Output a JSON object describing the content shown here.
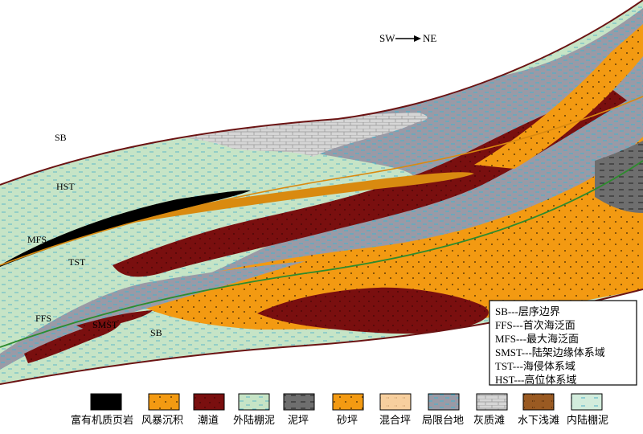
{
  "compass": {
    "left": "SW",
    "right": "NE"
  },
  "labels": {
    "sb_top": "SB",
    "hst": "HST",
    "mfs": "MFS",
    "tst": "TST",
    "ffs": "FFS",
    "smst": "SMST",
    "sb_bottom": "SB"
  },
  "key": [
    {
      "abbr": "SB",
      "sep": "---",
      "text": "层序边界"
    },
    {
      "abbr": "FFS",
      "sep": "---",
      "text": "首次海泛面"
    },
    {
      "abbr": "MFS",
      "sep": "---",
      "text": "最大海泛面"
    },
    {
      "abbr": "SMST",
      "sep": "---",
      "text": "陆架边缘体系域"
    },
    {
      "abbr": "TST",
      "sep": "---",
      "text": "海侵体系域"
    },
    {
      "abbr": "HST",
      "sep": "---",
      "text": "高位体系域"
    }
  ],
  "legend": [
    {
      "label": "富有机质页岩",
      "swatch": "black"
    },
    {
      "label": "风暴沉积",
      "swatch": "storm"
    },
    {
      "label": "潮道",
      "swatch": "channel"
    },
    {
      "label": "外陆棚泥",
      "swatch": "outer"
    },
    {
      "label": "泥坪",
      "swatch": "mud"
    },
    {
      "label": "砂坪",
      "swatch": "sand"
    },
    {
      "label": "混合坪",
      "swatch": "mixed"
    },
    {
      "label": "局限台地",
      "swatch": "restricted"
    },
    {
      "label": "灰质滩",
      "swatch": "lime"
    },
    {
      "label": "水下浅滩",
      "swatch": "shoal"
    },
    {
      "label": "内陆棚泥",
      "swatch": "inner"
    }
  ],
  "colors": {
    "outer_shelf": "#c6e4c6",
    "inner_shelf": "#b0d8d4",
    "restricted": "#9a9aa4",
    "sand": "#f39a12",
    "channel": "#7a0f0f",
    "storm": "#d98a10",
    "black_shale": "#000000",
    "limestone": "#d4d4d4",
    "mud_flat": "#7f7f7f",
    "mixed": "#f7cf9e",
    "shoal": "#9a5a22",
    "boundary": "#6b1313",
    "ffs_line": "#2e8b2e"
  }
}
